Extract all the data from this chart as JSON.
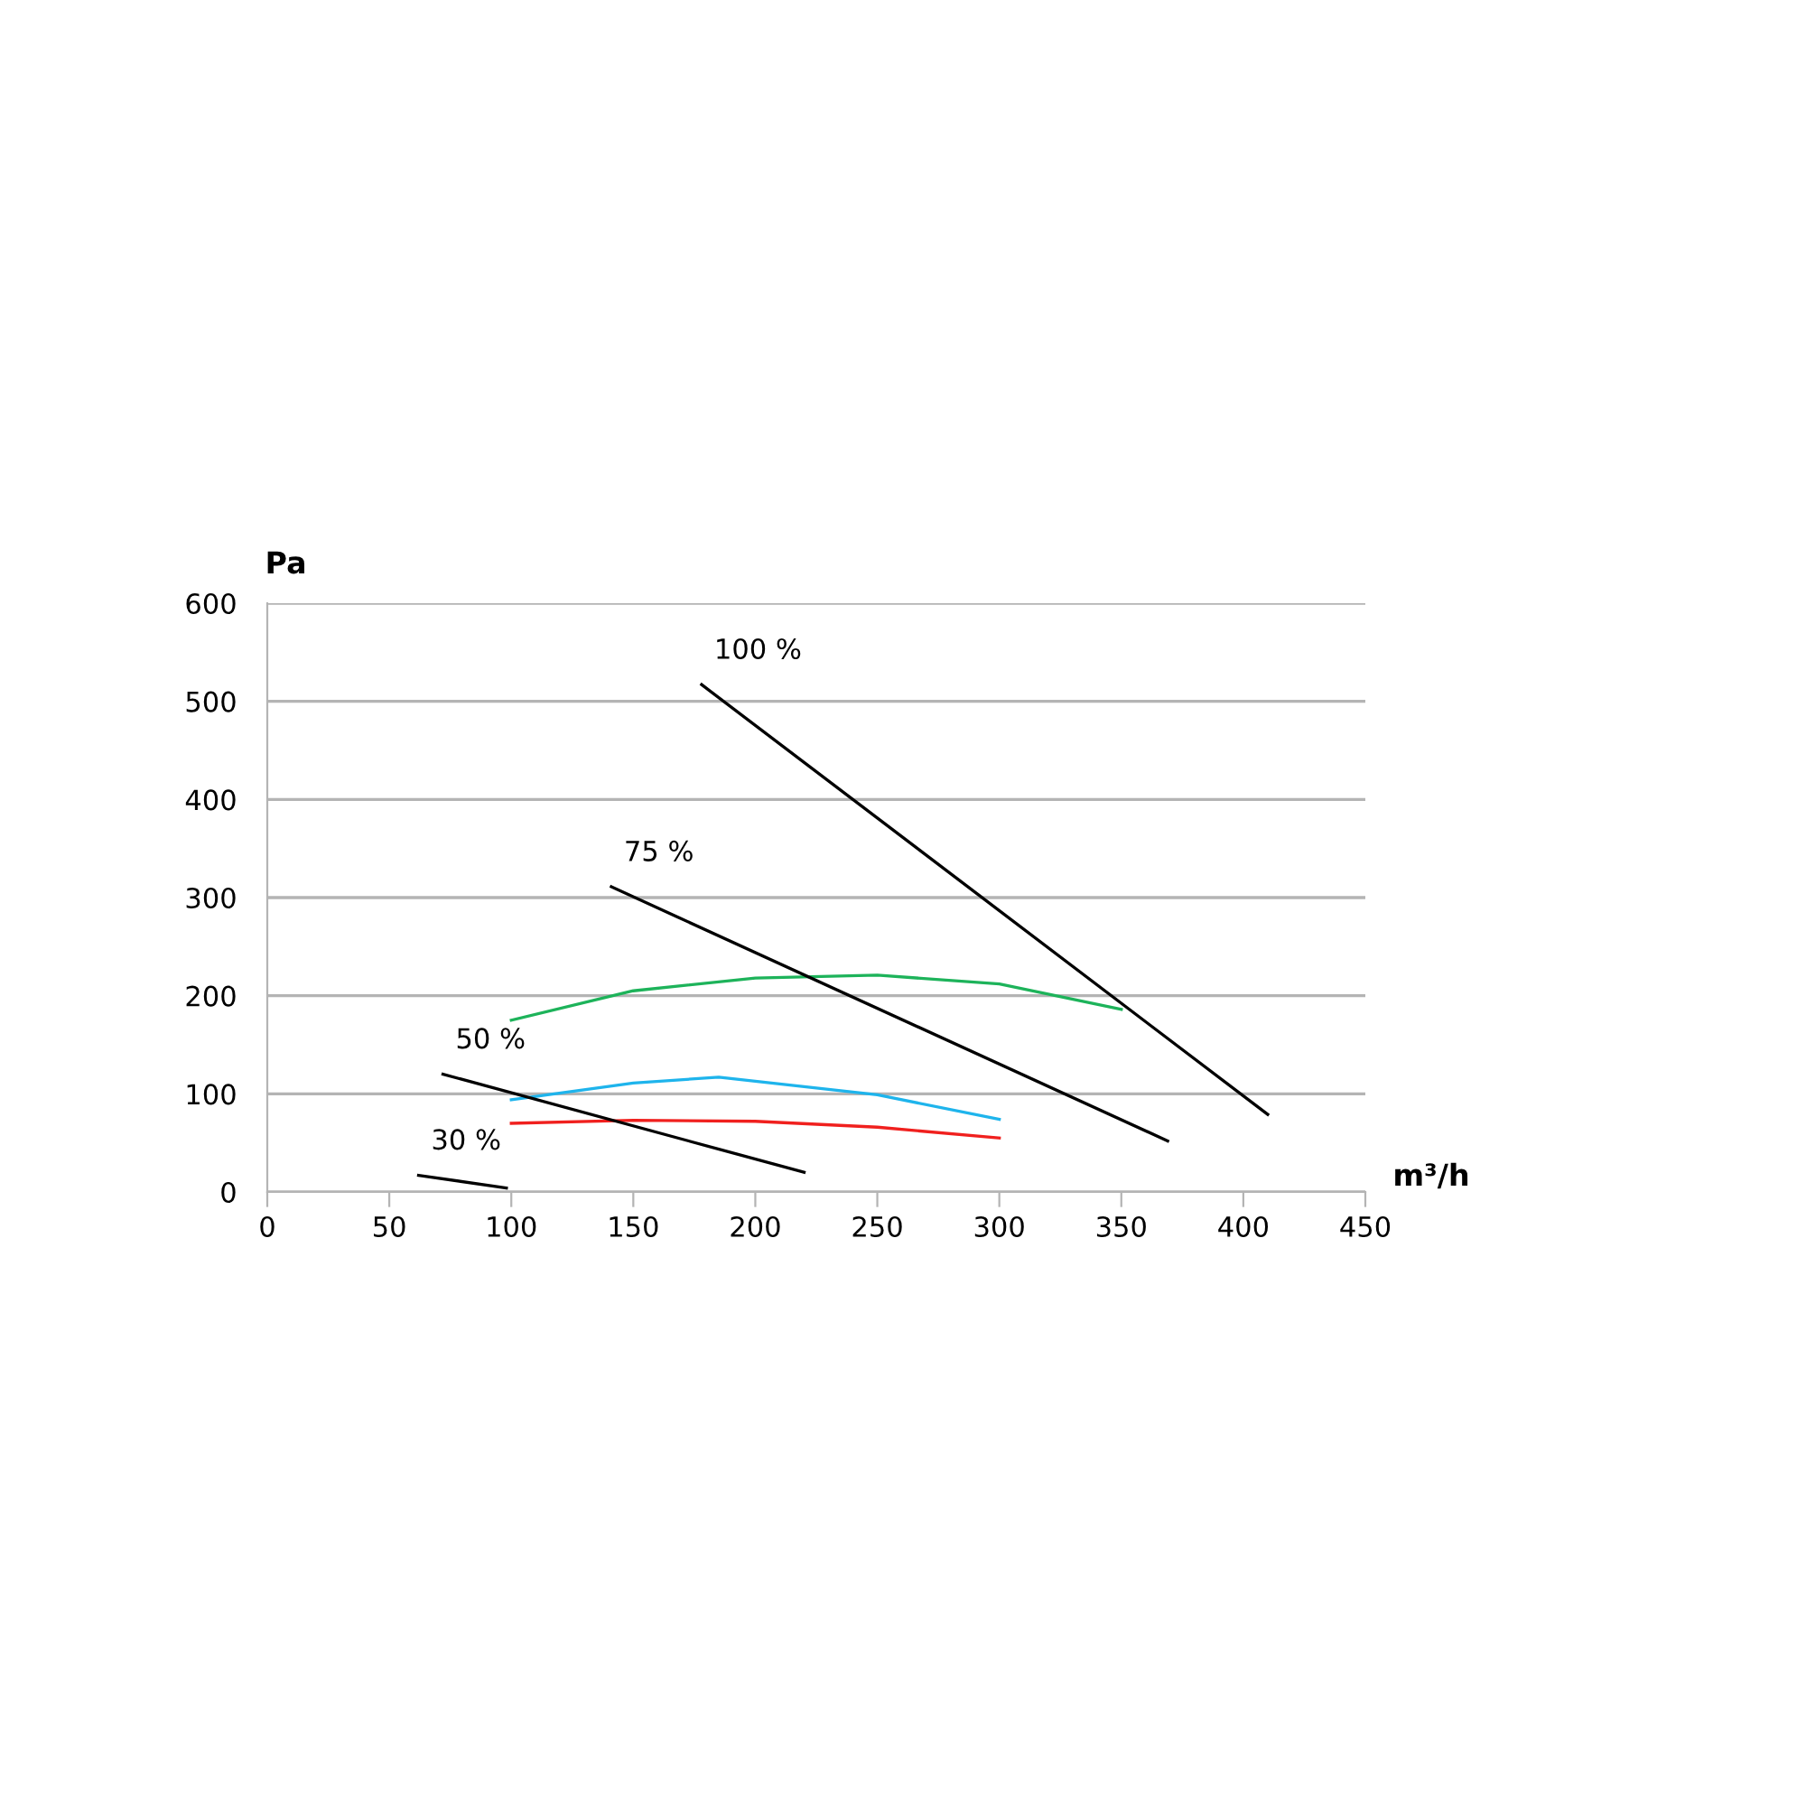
{
  "chart_data": {
    "type": "line",
    "xlabel": "m³/h",
    "ylabel": "Pa",
    "xlim": [
      0,
      450
    ],
    "xticks": [
      0,
      50,
      100,
      150,
      200,
      250,
      300,
      350,
      400,
      450
    ],
    "ylim": [
      0,
      600
    ],
    "yticks": [
      0,
      100,
      200,
      300,
      400,
      500,
      600
    ],
    "grid": "y",
    "marker": "none",
    "line_style": "solid",
    "series": [
      {
        "color": "#1db35a",
        "x": [
          100,
          150,
          200,
          250,
          300,
          350
        ],
        "values": [
          175,
          205,
          218,
          221,
          212,
          186
        ]
      },
      {
        "color": "#1eb4ec",
        "x": [
          100,
          150,
          185,
          250,
          300
        ],
        "values": [
          94,
          111,
          117,
          99,
          74
        ]
      },
      {
        "color": "#f0201e",
        "x": [
          100,
          150,
          200,
          250,
          300
        ],
        "values": [
          70,
          73,
          72,
          66,
          55
        ]
      },
      {
        "color": "#000000",
        "x": [
          178,
          410
        ],
        "values": [
          517,
          79
        ]
      },
      {
        "color": "#000000",
        "x": [
          141,
          369
        ],
        "values": [
          311,
          52
        ]
      },
      {
        "color": "#000000",
        "x": [
          72,
          220
        ],
        "values": [
          120,
          20
        ]
      },
      {
        "color": "#000000",
        "x": [
          62,
          98
        ],
        "values": [
          17,
          4
        ]
      }
    ],
    "annotations": [
      {
        "text": "100 %",
        "x": 178,
        "y": 517
      },
      {
        "text": "75 %",
        "x": 141,
        "y": 311
      },
      {
        "text": "50 %",
        "x": 72,
        "y": 120
      },
      {
        "text": "30 %",
        "x": 62,
        "y": 17
      }
    ]
  }
}
